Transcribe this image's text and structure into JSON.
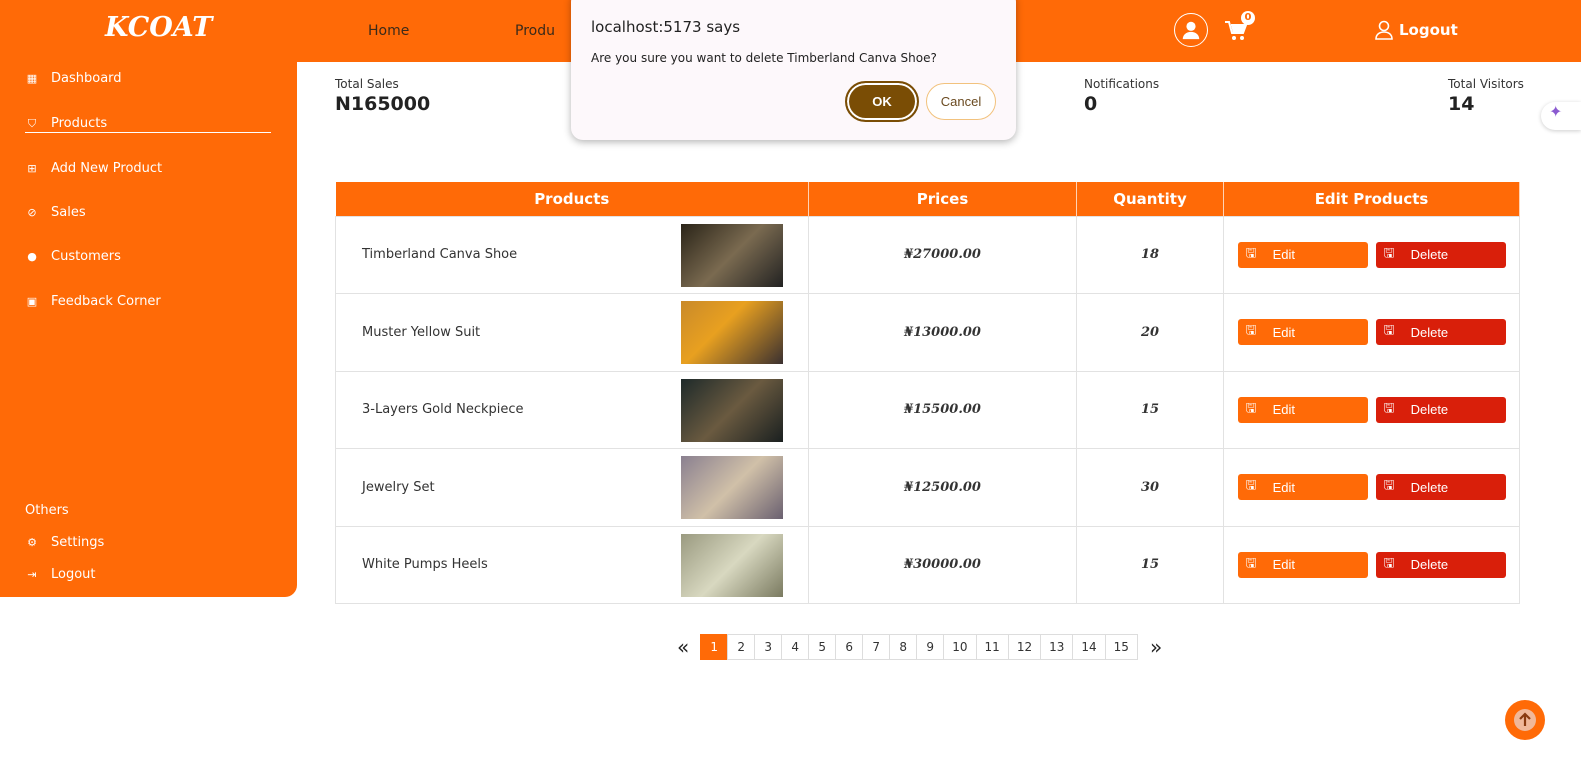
{
  "header": {
    "logo": "KCOAT",
    "nav": [
      "Home",
      "Produ"
    ],
    "cart_count": "0",
    "logout": "Logout"
  },
  "sidebar": {
    "items": [
      {
        "label": "Dashboard",
        "icon": "dashboard-icon"
      },
      {
        "label": "Products",
        "icon": "bag-icon",
        "active": true
      },
      {
        "label": "Add New Product",
        "icon": "add-icon"
      },
      {
        "label": "Sales",
        "icon": "sales-icon"
      },
      {
        "label": "Customers",
        "icon": "user-icon"
      },
      {
        "label": "Feedback Corner",
        "icon": "feedback-icon"
      }
    ],
    "others_label": "Others",
    "settings": "Settings",
    "logout": "Logout"
  },
  "stats": [
    {
      "label": "Total Sales",
      "value": "N165000"
    },
    {
      "label": "Notifications",
      "value": "0"
    },
    {
      "label": "Total Visitors",
      "value": "14"
    }
  ],
  "table": {
    "headers": [
      "Products",
      "Prices",
      "Quantity",
      "Edit Products"
    ],
    "edit_label": "Edit",
    "delete_label": "Delete",
    "rows": [
      {
        "name": "Timberland Canva Shoe",
        "price": "₦27000.00",
        "qty": "18"
      },
      {
        "name": "Muster Yellow Suit",
        "price": "₦13000.00",
        "qty": "20"
      },
      {
        "name": "3-Layers Gold Neckpiece",
        "price": "₦15500.00",
        "qty": "15"
      },
      {
        "name": "Jewelry Set",
        "price": "₦12500.00",
        "qty": "30"
      },
      {
        "name": "White Pumps Heels",
        "price": "₦30000.00",
        "qty": "15"
      }
    ]
  },
  "pagination": {
    "current": 1,
    "pages": [
      "1",
      "2",
      "3",
      "4",
      "5",
      "6",
      "7",
      "8",
      "9",
      "10",
      "11",
      "12",
      "13",
      "14",
      "15"
    ],
    "prev": "«",
    "next": "»"
  },
  "dialog": {
    "title": "localhost:5173 says",
    "message": "Are you sure you want to delete Timberland Canva Shoe?",
    "ok": "OK",
    "cancel": "Cancel"
  },
  "colors": {
    "brand": "#ff6a07",
    "delete": "#d91f0a",
    "ok": "#7a4d05"
  }
}
